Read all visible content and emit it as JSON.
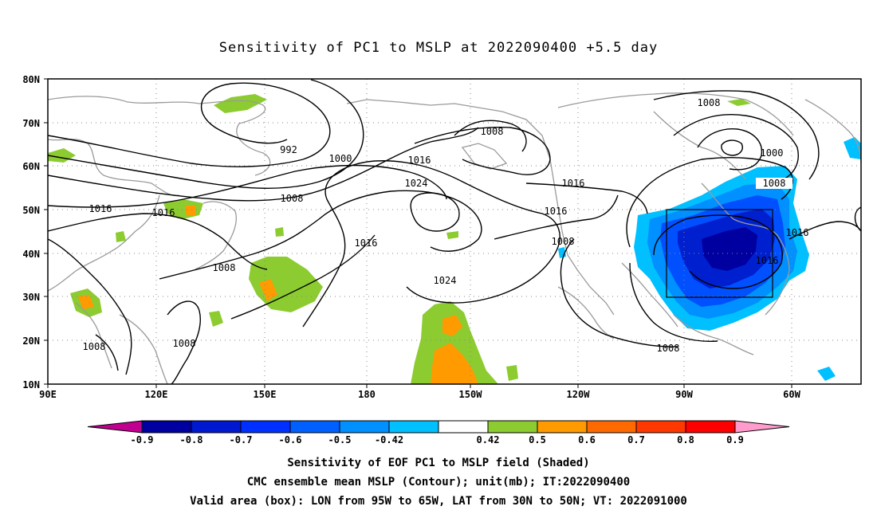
{
  "title": "Sensitivity of PC1 to MSLP at 2022090400 +5.5 day",
  "map": {
    "lat_labels": [
      "80N",
      "70N",
      "60N",
      "50N",
      "40N",
      "30N",
      "20N",
      "10N"
    ],
    "lon_labels": [
      "90E",
      "120E",
      "150E",
      "180",
      "150W",
      "120W",
      "90W",
      "60W"
    ],
    "contour_labels": [
      {
        "text": "992"
      },
      {
        "text": "1000"
      },
      {
        "text": "1016"
      },
      {
        "text": "1008"
      },
      {
        "text": "1016"
      },
      {
        "text": "1016"
      },
      {
        "text": "1024"
      },
      {
        "text": "1008"
      },
      {
        "text": "1016"
      },
      {
        "text": "1016"
      },
      {
        "text": "1016"
      },
      {
        "text": "1008"
      },
      {
        "text": "1024"
      },
      {
        "text": "1008"
      },
      {
        "text": "1008"
      },
      {
        "text": "1008"
      },
      {
        "text": "1008"
      },
      {
        "text": "1000"
      },
      {
        "text": "1008"
      },
      {
        "text": "1016"
      },
      {
        "text": "1016"
      }
    ],
    "box": {
      "lon_from": "95W",
      "lon_to": "65W",
      "lat_from": "30N",
      "lat_to": "50N"
    }
  },
  "colorbar": {
    "colors": [
      "#c0008f",
      "#0000a0",
      "#0018d0",
      "#0030ff",
      "#0060ff",
      "#0090ff",
      "#00c0ff",
      "#ffffff",
      "#8ccc30",
      "#ff9a00",
      "#ff6a00",
      "#ff3800",
      "#ff0000",
      "#ff9ccc"
    ],
    "labels": [
      "-0.9",
      "-0.8",
      "-0.7",
      "-0.6",
      "-0.5",
      "-0.42",
      "0.42",
      "0.5",
      "0.6",
      "0.7",
      "0.8",
      "0.9"
    ]
  },
  "captions": {
    "line1": "Sensitivity of EOF PC1 to MSLP field (Shaded)",
    "line2": "CMC ensemble mean MSLP (Contour); unit(mb); IT:2022090400",
    "line3": "Valid area (box): LON from 95W to 65W, LAT from 30N to 50N; VT: 2022091000"
  }
}
